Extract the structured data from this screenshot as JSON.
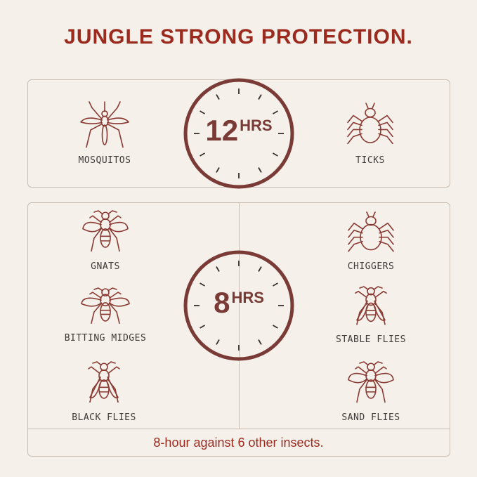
{
  "title": "JUNGLE STRONG PROTECTION.",
  "colors": {
    "title": "#9b2a1f",
    "clock": "#7a3a36",
    "icon": "#8a3a33",
    "background": "#f5f0ea"
  },
  "top_section": {
    "hours": "12",
    "unit": "HRS",
    "insects": [
      {
        "label": "MOSQUITOS",
        "icon": "mosquito-icon"
      },
      {
        "label": "TICKS",
        "icon": "tick-icon"
      }
    ]
  },
  "bottom_section": {
    "hours": "8",
    "unit": "HRS",
    "left": [
      {
        "label": "GNATS",
        "icon": "gnat-icon"
      },
      {
        "label": "BITTING MIDGES",
        "icon": "midge-icon"
      },
      {
        "label": "BLACK FLIES",
        "icon": "black-fly-icon"
      }
    ],
    "right": [
      {
        "label": "CHIGGERS",
        "icon": "chigger-icon"
      },
      {
        "label": "STABLE FLIES",
        "icon": "stable-fly-icon"
      },
      {
        "label": "SAND FLIES",
        "icon": "sand-fly-icon"
      }
    ],
    "footer": "8-hour against 6 other insects."
  }
}
